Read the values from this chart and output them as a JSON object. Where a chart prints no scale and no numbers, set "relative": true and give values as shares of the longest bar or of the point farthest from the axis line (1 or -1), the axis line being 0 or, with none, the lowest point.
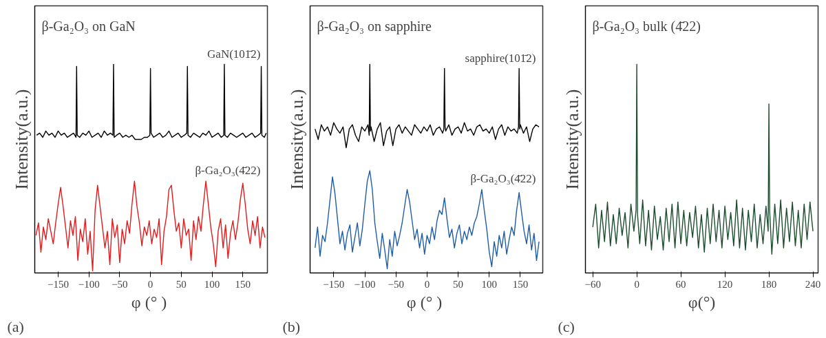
{
  "chart_data": [
    {
      "type": "line",
      "title": "β-Ga₂O₃ on  GaN",
      "xlabel": "φ (°  )",
      "ylabel": "Intensity(a.u.)",
      "annotations": [
        "(a)"
      ],
      "relative": true,
      "xlim": [
        -188,
        190
      ],
      "xticks": [
        -150,
        -100,
        -50,
        0,
        50,
        100,
        150
      ],
      "grid": false,
      "series": [
        {
          "name": "GaN(101̄2)",
          "color": "#000000",
          "x": [
            -185,
            -180,
            -175,
            -170,
            -165,
            -160,
            -155,
            -150,
            -145,
            -140,
            -135,
            -130,
            -125,
            -121,
            -120,
            -119,
            -115,
            -110,
            -105,
            -100,
            -95,
            -90,
            -85,
            -80,
            -75,
            -70,
            -65,
            -61,
            -60,
            -59,
            -55,
            -50,
            -45,
            -40,
            -35,
            -30,
            -25,
            -20,
            -15,
            -10,
            -5,
            -1,
            0,
            1,
            5,
            10,
            15,
            20,
            25,
            30,
            35,
            40,
            45,
            50,
            55,
            59,
            60,
            61,
            65,
            70,
            75,
            80,
            85,
            90,
            95,
            100,
            105,
            110,
            115,
            119,
            120,
            121,
            125,
            130,
            135,
            140,
            145,
            150,
            155,
            160,
            165,
            170,
            175,
            179,
            180,
            181,
            185,
            188
          ],
          "values": [
            0.66,
            0.67,
            0.65,
            0.68,
            0.66,
            0.67,
            0.65,
            0.68,
            0.66,
            0.67,
            0.65,
            0.66,
            0.67,
            0.65,
            0.99,
            0.66,
            0.65,
            0.67,
            0.66,
            0.68,
            0.65,
            0.66,
            0.67,
            0.65,
            0.68,
            0.66,
            0.67,
            0.66,
            1,
            0.65,
            0.66,
            0.67,
            0.65,
            0.66,
            0.65,
            0.66,
            0.64,
            0.64,
            0.64,
            0.65,
            0.65,
            0.66,
            0.98,
            0.67,
            0.65,
            0.66,
            0.67,
            0.65,
            0.66,
            0.68,
            0.65,
            0.66,
            0.67,
            0.65,
            0.66,
            0.67,
            0.99,
            0.66,
            0.65,
            0.67,
            0.66,
            0.65,
            0.67,
            0.66,
            0.68,
            0.65,
            0.66,
            0.67,
            0.65,
            0.66,
            1,
            0.66,
            0.65,
            0.67,
            0.66,
            0.65,
            0.66,
            0.67,
            0.65,
            0.66,
            0.67,
            0.65,
            0.66,
            0.67,
            0.99,
            0.66,
            0.65,
            0.67
          ]
        },
        {
          "name": "β-Ga₂O₃(4̄22)",
          "color": "#e31a1c",
          "x": [
            -186,
            -182,
            -178,
            -174,
            -170,
            -166,
            -162,
            -158,
            -154,
            -150,
            -146,
            -142,
            -138,
            -134,
            -130,
            -126,
            -122,
            -118,
            -114,
            -110,
            -106,
            -102,
            -98,
            -94,
            -90,
            -86,
            -82,
            -78,
            -74,
            -70,
            -66,
            -62,
            -58,
            -54,
            -50,
            -46,
            -42,
            -38,
            -34,
            -30,
            -26,
            -22,
            -18,
            -14,
            -10,
            -6,
            -2,
            2,
            6,
            10,
            14,
            18,
            22,
            26,
            30,
            34,
            38,
            42,
            46,
            50,
            54,
            58,
            62,
            66,
            70,
            74,
            78,
            82,
            86,
            90,
            94,
            98,
            102,
            106,
            110,
            114,
            118,
            122,
            126,
            130,
            134,
            138,
            142,
            146,
            150,
            154,
            158,
            162,
            166,
            170,
            174,
            178,
            182,
            186
          ],
          "values": [
            0.18,
            0.24,
            0.1,
            0.22,
            0.16,
            0.26,
            0.2,
            0.14,
            0.24,
            0.33,
            0.41,
            0.32,
            0.22,
            0.12,
            0.25,
            0.18,
            0.27,
            0.06,
            0.21,
            0.15,
            0.26,
            0.09,
            0.2,
            0.01,
            0.3,
            0.42,
            0.32,
            0.22,
            0.12,
            0.2,
            0.04,
            0.26,
            0.17,
            0.23,
            0.05,
            0.21,
            0.14,
            0.25,
            0.19,
            0.33,
            0.44,
            0.32,
            0.24,
            0.13,
            0.22,
            0.18,
            0.25,
            0.14,
            0.21,
            0.17,
            0.26,
            0.04,
            0.2,
            0.27,
            0.4,
            0.42,
            0.3,
            0.2,
            0.24,
            0.12,
            0.26,
            0.18,
            0.21,
            0.06,
            0.25,
            0.16,
            0.27,
            0.2,
            0.33,
            0.44,
            0.33,
            0.22,
            0.14,
            0.03,
            0.2,
            0.26,
            0.12,
            0.23,
            0.07,
            0.19,
            0.25,
            0.16,
            0.24,
            0.35,
            0.43,
            0.33,
            0.21,
            0.14,
            0.25,
            0.18,
            0.27,
            0.12,
            0.22,
            0.17
          ]
        }
      ]
    },
    {
      "type": "line",
      "title": "β-Ga₂O₃ on  sapphire",
      "xlabel": "φ (°  )",
      "ylabel": "Intensity(a.u.)",
      "annotations": [
        "(b)"
      ],
      "relative": true,
      "xlim": [
        -188,
        186
      ],
      "xticks": [
        -150,
        -100,
        -50,
        0,
        50,
        100,
        150
      ],
      "grid": false,
      "series": [
        {
          "name": "sapphire(101̄2)",
          "color": "#000000",
          "x": [
            -180,
            -175,
            -170,
            -165,
            -160,
            -155,
            -150,
            -145,
            -140,
            -135,
            -130,
            -125,
            -120,
            -115,
            -110,
            -105,
            -100,
            -95,
            -93,
            -92,
            -91,
            -90,
            -85,
            -80,
            -75,
            -70,
            -65,
            -60,
            -55,
            -50,
            -45,
            -40,
            -35,
            -30,
            -25,
            -20,
            -15,
            -10,
            -5,
            0,
            5,
            10,
            15,
            20,
            25,
            27,
            28,
            29,
            30,
            35,
            40,
            45,
            50,
            55,
            60,
            65,
            70,
            75,
            80,
            85,
            90,
            95,
            100,
            105,
            110,
            115,
            120,
            125,
            130,
            135,
            140,
            145,
            147,
            148,
            149,
            150,
            155,
            160,
            165,
            170,
            175,
            180
          ],
          "values": [
            0.69,
            0.64,
            0.71,
            0.68,
            0.7,
            0.66,
            0.72,
            0.69,
            0.67,
            0.7,
            0.6,
            0.69,
            0.71,
            0.66,
            0.63,
            0.7,
            0.68,
            0.71,
            0.66,
            1,
            0.68,
            0.7,
            0.63,
            0.69,
            0.72,
            0.61,
            0.68,
            0.7,
            0.61,
            0.69,
            0.71,
            0.67,
            0.7,
            0.68,
            0.66,
            0.71,
            0.69,
            0.67,
            0.7,
            0.68,
            0.71,
            0.66,
            0.69,
            0.7,
            0.67,
            0.69,
            0.98,
            0.7,
            0.68,
            0.71,
            0.66,
            0.69,
            0.7,
            0.67,
            0.72,
            0.68,
            0.69,
            0.66,
            0.7,
            0.71,
            0.68,
            0.69,
            0.67,
            0.7,
            0.64,
            0.69,
            0.71,
            0.66,
            0.7,
            0.68,
            0.69,
            0.67,
            0.7,
            0.98,
            0.69,
            0.71,
            0.67,
            0.7,
            0.63,
            0.69,
            0.71,
            0.7
          ]
        },
        {
          "name": "β-Ga₂O₃(4̄22)",
          "color": "#1f5ca6",
          "x": [
            -180,
            -176,
            -172,
            -168,
            -164,
            -160,
            -156,
            -152,
            -148,
            -144,
            -140,
            -136,
            -132,
            -128,
            -124,
            -120,
            -116,
            -112,
            -108,
            -104,
            -100,
            -96,
            -92,
            -88,
            -84,
            -80,
            -76,
            -72,
            -68,
            -64,
            -60,
            -56,
            -52,
            -48,
            -44,
            -40,
            -36,
            -32,
            -28,
            -24,
            -20,
            -16,
            -12,
            -8,
            -4,
            0,
            4,
            8,
            12,
            16,
            20,
            24,
            28,
            32,
            36,
            40,
            44,
            48,
            52,
            56,
            60,
            64,
            68,
            72,
            76,
            80,
            84,
            88,
            92,
            96,
            100,
            104,
            108,
            112,
            116,
            120,
            124,
            128,
            132,
            136,
            140,
            144,
            148,
            152,
            156,
            160,
            164,
            168,
            172,
            176,
            180
          ],
          "values": [
            0.12,
            0.22,
            0.08,
            0.18,
            0.15,
            0.24,
            0.35,
            0.46,
            0.38,
            0.26,
            0.14,
            0.2,
            0.11,
            0.19,
            0.23,
            0.1,
            0.17,
            0.24,
            0.13,
            0.21,
            0.33,
            0.44,
            0.49,
            0.4,
            0.24,
            0.15,
            0.07,
            0.19,
            0.11,
            0.02,
            0.16,
            0.08,
            0.2,
            0.13,
            0.18,
            0.24,
            0.32,
            0.4,
            0.34,
            0.25,
            0.16,
            0.21,
            0.12,
            0.19,
            0.09,
            0.18,
            0.14,
            0.22,
            0.16,
            0.25,
            0.3,
            0.28,
            0.36,
            0.26,
            0.17,
            0.21,
            0.12,
            0.19,
            0.23,
            0.14,
            0.2,
            0.16,
            0.22,
            0.18,
            0.24,
            0.27,
            0.33,
            0.4,
            0.3,
            0.21,
            0.1,
            0.03,
            0.15,
            0.08,
            0.18,
            0.12,
            0.2,
            0.09,
            0.16,
            0.22,
            0.18,
            0.3,
            0.385,
            0.29,
            0.2,
            0.14,
            0.23,
            0.11,
            0.19,
            0.06,
            0.15
          ]
        }
      ]
    },
    {
      "type": "line",
      "title": "β-Ga₂O₃ bulk (4̄22)",
      "xlabel": "φ(°)",
      "ylabel": "Intensity(a.u.)",
      "annotations": [
        "(c)"
      ],
      "relative": true,
      "xlim": [
        -70,
        247
      ],
      "xticks": [
        -60,
        0,
        60,
        120,
        180,
        240
      ],
      "grid": false,
      "series": [
        {
          "color": "#1b4d2e",
          "x": [
            -60,
            -56,
            -52,
            -48,
            -44,
            -40,
            -36,
            -32,
            -28,
            -24,
            -20,
            -16,
            -12,
            -8,
            -4,
            -1,
            0,
            1,
            4,
            8,
            12,
            16,
            20,
            24,
            28,
            32,
            36,
            40,
            44,
            48,
            52,
            56,
            60,
            64,
            68,
            72,
            76,
            80,
            84,
            88,
            92,
            96,
            100,
            104,
            108,
            112,
            116,
            120,
            124,
            128,
            132,
            136,
            140,
            144,
            148,
            152,
            156,
            160,
            164,
            168,
            172,
            176,
            179,
            180,
            181,
            184,
            188,
            192,
            196,
            200,
            204,
            208,
            212,
            216,
            220,
            224,
            228,
            232,
            236,
            240
          ],
          "values": [
            0.22,
            0.33,
            0.12,
            0.3,
            0.15,
            0.34,
            0.13,
            0.28,
            0.14,
            0.31,
            0.18,
            0.29,
            0.12,
            0.33,
            0.2,
            0.3,
            1,
            0.28,
            0.14,
            0.35,
            0.13,
            0.3,
            0.11,
            0.32,
            0.16,
            0.27,
            0.11,
            0.31,
            0.15,
            0.33,
            0.12,
            0.34,
            0.14,
            0.3,
            0.13,
            0.29,
            0.17,
            0.32,
            0.12,
            0.28,
            0.1,
            0.31,
            0.14,
            0.33,
            0.15,
            0.3,
            0.12,
            0.32,
            0.16,
            0.29,
            0.13,
            0.35,
            0.12,
            0.31,
            0.11,
            0.3,
            0.15,
            0.33,
            0.12,
            0.28,
            0.14,
            0.32,
            0.2,
            0.81,
            0.3,
            0.09,
            0.33,
            0.14,
            0.35,
            0.12,
            0.31,
            0.15,
            0.34,
            0.13,
            0.3,
            0.12,
            0.33,
            0.16,
            0.34,
            0.2
          ]
        }
      ]
    }
  ]
}
